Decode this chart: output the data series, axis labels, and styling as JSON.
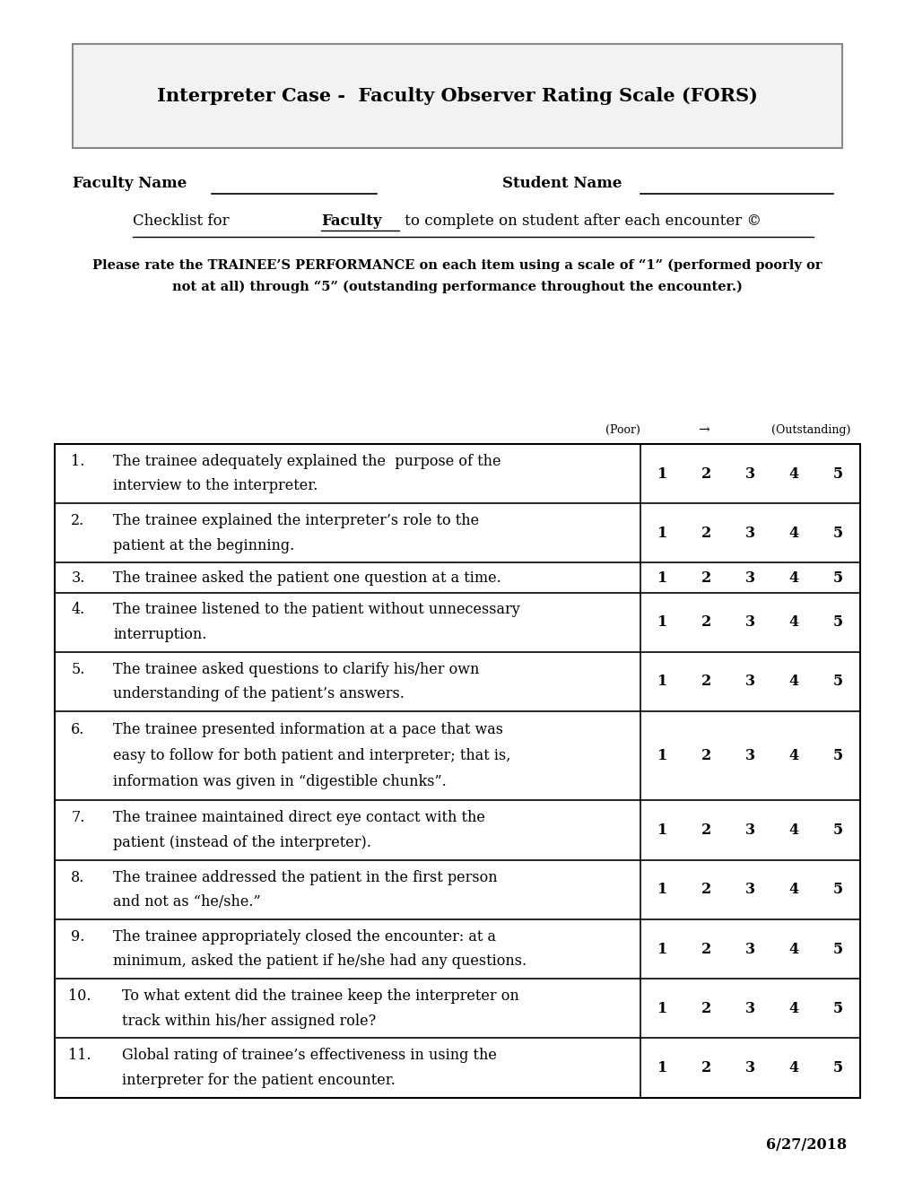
{
  "title": "Interpreter Case -  Faculty Observer Rating Scale (FORS)",
  "faculty_label": "Faculty Name",
  "student_label": "Student Name",
  "instruction_line1": "Please rate the TRAINEE’S PERFORMANCE on each item using a scale of “1” (performed poorly or",
  "instruction_line2": "not at all) through “5” (outstanding performance throughout the encounter.)",
  "poor_label": "(Poor)",
  "arrow": "→",
  "outstanding_label": "(Outstanding)",
  "date": "6/27/2018",
  "items": [
    {
      "num": "1.",
      "text_lines": [
        "The trainee adequately explained the  purpose of the",
        "interview to the interpreter."
      ]
    },
    {
      "num": "2.",
      "text_lines": [
        "The trainee explained the interpreter’s role to the",
        "patient at the beginning."
      ]
    },
    {
      "num": "3.",
      "text_lines": [
        "The trainee asked the patient one question at a time."
      ]
    },
    {
      "num": "4.",
      "text_lines": [
        "The trainee listened to the patient without unnecessary",
        "interruption."
      ]
    },
    {
      "num": "5.",
      "text_lines": [
        "The trainee asked questions to clarify his/her own",
        "understanding of the patient’s answers."
      ]
    },
    {
      "num": "6.",
      "text_lines": [
        "The trainee presented information at a pace that was",
        "easy to follow for both patient and interpreter; that is,",
        "information was given in “digestible chunks”."
      ]
    },
    {
      "num": "7.",
      "text_lines": [
        "The trainee maintained direct eye contact with the",
        "patient (instead of the interpreter)."
      ]
    },
    {
      "num": "8.",
      "text_lines": [
        "The trainee addressed the patient in the first person",
        "and not as “he/she.”"
      ]
    },
    {
      "num": "9.",
      "text_lines": [
        "The trainee appropriately closed the encounter: at a",
        "minimum, asked the patient if he/she had any questions."
      ]
    },
    {
      "num": "10.",
      "text_lines": [
        "To what extent did the trainee keep the interpreter on",
        "track within his/her assigned role?"
      ]
    },
    {
      "num": "11.",
      "text_lines": [
        "Global rating of trainee’s effectiveness in using the",
        "interpreter for the patient encounter."
      ]
    }
  ],
  "bg_color": "#ffffff",
  "text_color": "#000000",
  "row_heights_raw": [
    2,
    2,
    1,
    2,
    2,
    3,
    2,
    2,
    2,
    2,
    2
  ]
}
